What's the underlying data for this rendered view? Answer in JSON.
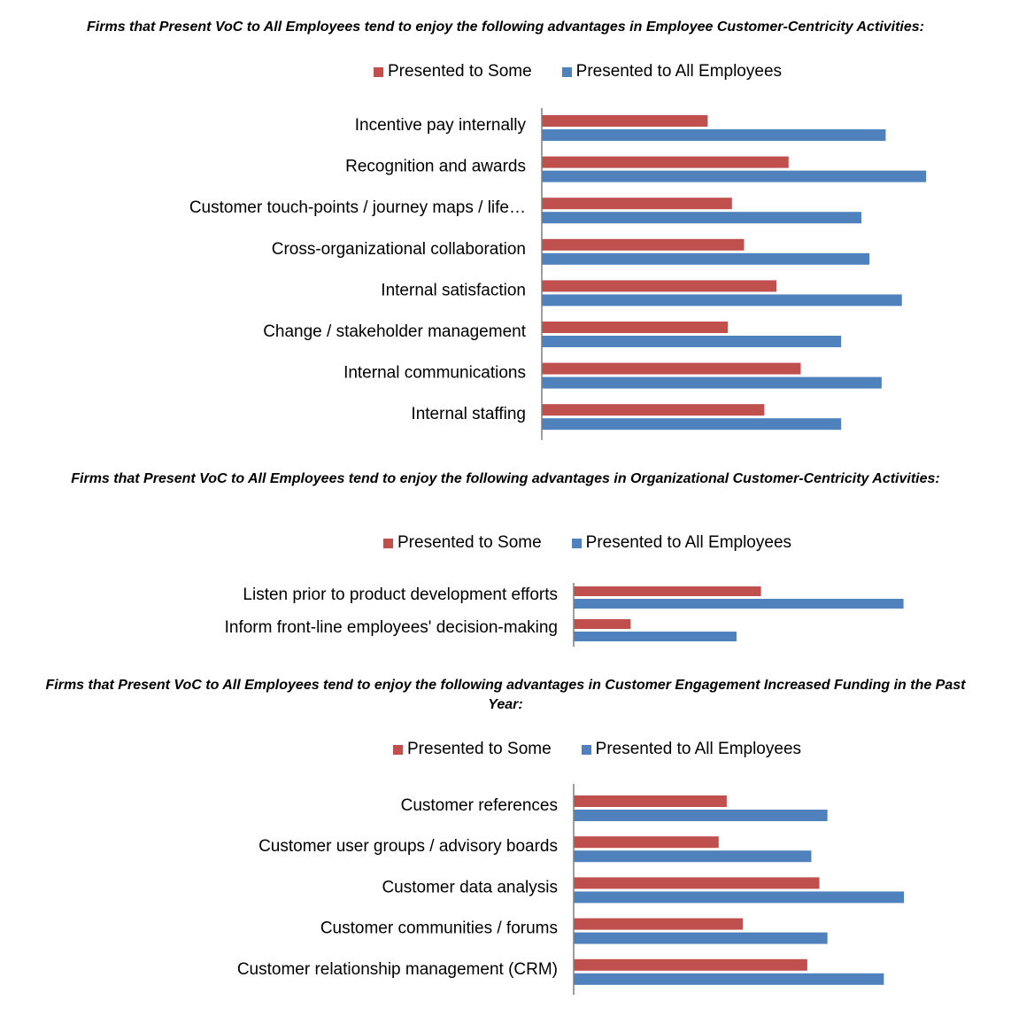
{
  "colors": {
    "some": "#c0504d",
    "all": "#4f81bd",
    "axis": "#7f7f7f"
  },
  "chart_data": [
    {
      "type": "bar",
      "orientation": "horizontal",
      "title": "Firms that Present VoC to All Employees tend to enjoy the following advantages in Employee Customer-Centricity Activities:",
      "legend": "top",
      "categories": [
        "Incentive pay internally",
        "Recognition and awards",
        "Customer touch-points / journey maps / life…",
        "Cross-organizational collaboration",
        "Internal satisfaction",
        "Change / stakeholder management",
        "Internal communications",
        "Internal staffing"
      ],
      "series": [
        {
          "name": "Presented to Some",
          "values": [
            41,
            61,
            47,
            50,
            58,
            46,
            64,
            55
          ]
        },
        {
          "name": "Presented to All Employees",
          "values": [
            85,
            95,
            79,
            81,
            89,
            74,
            84,
            74
          ]
        }
      ],
      "xlim": [
        0,
        100
      ]
    },
    {
      "type": "bar",
      "orientation": "horizontal",
      "title": "Firms that Present VoC to All Employees tend to enjoy the following advantages in Organizational Customer-Centricity Activities:",
      "legend": "top",
      "categories": [
        "Listen prior to product development efforts",
        "Inform front-line employees' decision-making"
      ],
      "series": [
        {
          "name": "Presented to Some",
          "values": [
            46,
            14
          ]
        },
        {
          "name": "Presented to All Employees",
          "values": [
            81,
            40
          ]
        }
      ],
      "xlim": [
        0,
        100
      ]
    },
    {
      "type": "bar",
      "orientation": "horizontal",
      "title": "Firms that Present VoC to All Employees tend to enjoy the following advantages in Customer Engagement Increased Funding in the Past Year:",
      "legend": "top",
      "categories": [
        "Customer references",
        "Customer user groups / advisory boards",
        "Customer data analysis",
        "Customer communities / forums",
        "Customer relationship management (CRM)"
      ],
      "series": [
        {
          "name": "Presented to Some",
          "values": [
            38,
            36,
            61,
            42,
            58
          ]
        },
        {
          "name": "Presented to All Employees",
          "values": [
            63,
            59,
            82,
            63,
            77
          ]
        }
      ],
      "xlim": [
        0,
        100
      ]
    }
  ]
}
